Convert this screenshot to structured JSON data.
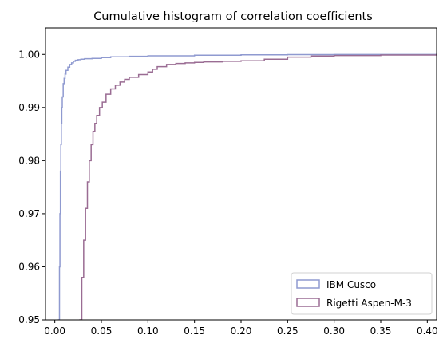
{
  "chart_data": {
    "type": "line",
    "step": true,
    "title": "Cumulative histogram of correlation coefficients",
    "xlabel": "",
    "ylabel": "",
    "xlim": [
      -0.01,
      0.41
    ],
    "ylim": [
      0.95,
      1.005
    ],
    "x_ticks": [
      0.0,
      0.05,
      0.1,
      0.15,
      0.2,
      0.25,
      0.3,
      0.35,
      0.4
    ],
    "x_tick_labels": [
      "0.00",
      "0.05",
      "0.10",
      "0.15",
      "0.20",
      "0.25",
      "0.30",
      "0.35",
      "0.40"
    ],
    "y_ticks": [
      0.95,
      0.96,
      0.97,
      0.98,
      0.99,
      1.0
    ],
    "y_tick_labels": [
      "0.95",
      "0.96",
      "0.97",
      "0.98",
      "0.99",
      "1.00"
    ],
    "grid": false,
    "legend_position": "lower-right",
    "series": [
      {
        "name": "IBM Cusco",
        "color": "#8f9ad0",
        "x": [
          0.004,
          0.005,
          0.0055,
          0.006,
          0.0065,
          0.007,
          0.0075,
          0.008,
          0.009,
          0.01,
          0.011,
          0.012,
          0.014,
          0.016,
          0.018,
          0.02,
          0.022,
          0.025,
          0.028,
          0.032,
          0.04,
          0.05,
          0.06,
          0.08,
          0.1,
          0.15,
          0.2,
          0.25,
          0.3,
          0.41
        ],
        "y": [
          0.95,
          0.96,
          0.97,
          0.978,
          0.983,
          0.987,
          0.99,
          0.992,
          0.9945,
          0.9955,
          0.9963,
          0.997,
          0.9976,
          0.9981,
          0.9984,
          0.9987,
          0.9989,
          0.999,
          0.9991,
          0.9992,
          0.99925,
          0.9994,
          0.99955,
          0.99965,
          0.99975,
          0.99985,
          0.99992,
          0.99996,
          0.99999,
          1.0
        ]
      },
      {
        "name": "Rigetti Aspen-M-3",
        "color": "#9a6c93",
        "x": [
          0.027,
          0.029,
          0.031,
          0.033,
          0.035,
          0.037,
          0.039,
          0.041,
          0.043,
          0.045,
          0.048,
          0.051,
          0.055,
          0.06,
          0.065,
          0.07,
          0.075,
          0.08,
          0.09,
          0.1,
          0.105,
          0.11,
          0.12,
          0.13,
          0.14,
          0.15,
          0.16,
          0.18,
          0.2,
          0.225,
          0.25,
          0.275,
          0.3,
          0.35,
          0.41
        ],
        "y": [
          0.95,
          0.958,
          0.965,
          0.971,
          0.976,
          0.98,
          0.983,
          0.9855,
          0.987,
          0.9885,
          0.99,
          0.991,
          0.9925,
          0.9935,
          0.9942,
          0.9948,
          0.9953,
          0.9957,
          0.9962,
          0.9967,
          0.9972,
          0.9977,
          0.9981,
          0.9983,
          0.9984,
          0.9985,
          0.9986,
          0.9987,
          0.9988,
          0.9991,
          0.9995,
          0.9997,
          0.9998,
          0.9999,
          1.0
        ]
      }
    ]
  }
}
